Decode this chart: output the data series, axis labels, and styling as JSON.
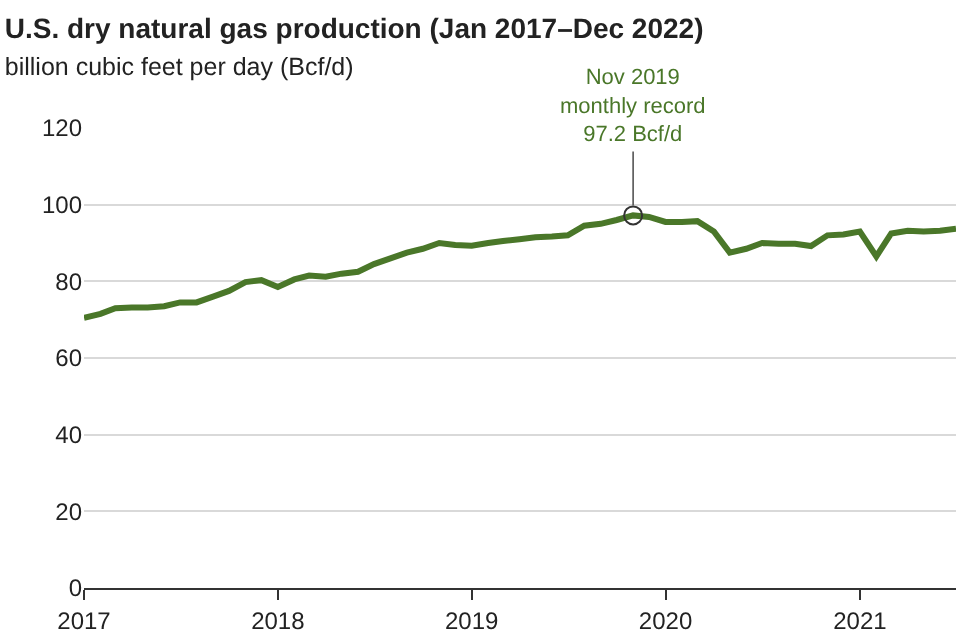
{
  "chart_data": {
    "type": "line",
    "title": "U.S. dry natural gas production (Jan 2017–Dec 2022)",
    "subtitle": "billion cubic feet per day (Bcf/d)",
    "x": [
      "2017-01",
      "2017-02",
      "2017-03",
      "2017-04",
      "2017-05",
      "2017-06",
      "2017-07",
      "2017-08",
      "2017-09",
      "2017-10",
      "2017-11",
      "2017-12",
      "2018-01",
      "2018-02",
      "2018-03",
      "2018-04",
      "2018-05",
      "2018-06",
      "2018-07",
      "2018-08",
      "2018-09",
      "2018-10",
      "2018-11",
      "2018-12",
      "2019-01",
      "2019-02",
      "2019-03",
      "2019-04",
      "2019-05",
      "2019-06",
      "2019-07",
      "2019-08",
      "2019-09",
      "2019-10",
      "2019-11",
      "2019-12",
      "2020-01",
      "2020-02",
      "2020-03",
      "2020-04",
      "2020-05",
      "2020-06",
      "2020-07",
      "2020-08",
      "2020-09",
      "2020-10",
      "2020-11",
      "2020-12",
      "2021-01",
      "2021-02",
      "2021-03",
      "2021-04",
      "2021-05",
      "2021-06",
      "2021-07"
    ],
    "series": [
      {
        "color": "#4a7729",
        "values": [
          70.5,
          71.5,
          73,
          73.2,
          73.2,
          73.5,
          74.5,
          74.5,
          76,
          77.5,
          79.8,
          80.3,
          78.5,
          80.5,
          81.5,
          81.2,
          82,
          82.5,
          84.5,
          86,
          87.5,
          88.5,
          90,
          89.5,
          89.3,
          90,
          90.5,
          91,
          91.5,
          91.7,
          92,
          94.5,
          95,
          96,
          97.2,
          96.8,
          95.5,
          95.5,
          95.7,
          93,
          87.5,
          88.5,
          90,
          89.8,
          89.8,
          89.2,
          92,
          92.2,
          93,
          86.5,
          92.5,
          93.2,
          93,
          93.2,
          93.7
        ]
      }
    ],
    "xlim": [
      "2017-01-01",
      "2021-07-01"
    ],
    "xticks": [
      {
        "value": "2017-01-01",
        "label": "2017"
      },
      {
        "value": "2018-01-01",
        "label": "2018"
      },
      {
        "value": "2019-01-01",
        "label": "2019"
      },
      {
        "value": "2020-01-01",
        "label": "2020"
      },
      {
        "value": "2021-01-01",
        "label": "2021"
      }
    ],
    "ylim": [
      0,
      120
    ],
    "yticks": [
      0,
      20,
      40,
      60,
      80,
      100,
      120
    ],
    "grid": "y",
    "marker": "none",
    "line_style": "solid",
    "annotations": [
      {
        "text": "Nov 2019\nmonthly record\n97.2 Bcf/d",
        "x": "2019-11",
        "y": 97.2
      }
    ]
  }
}
